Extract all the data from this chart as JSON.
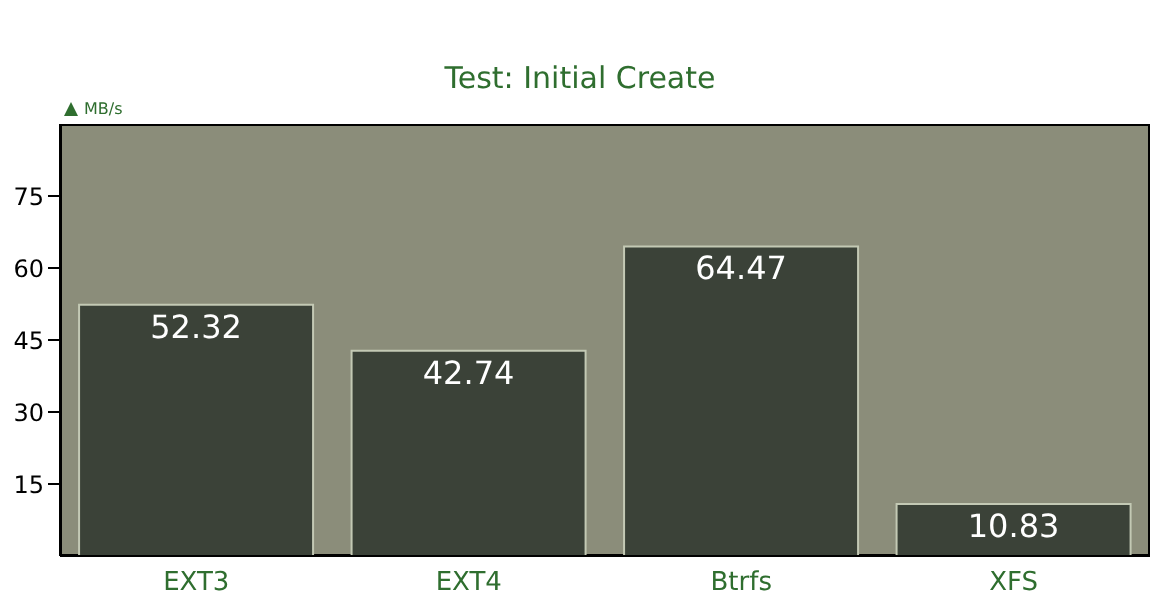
{
  "chart_data": {
    "type": "bar",
    "subtitle": "Test: Initial Create",
    "ylabel": "MB/s",
    "categories": [
      "EXT3",
      "EXT4",
      "Btrfs",
      "XFS"
    ],
    "values": [
      52.32,
      42.74,
      64.47,
      10.83
    ],
    "color": "#3b4238",
    "ylim": [
      0,
      90
    ],
    "yticks": [
      15,
      30,
      45,
      60,
      75
    ],
    "data_labels": true
  }
}
